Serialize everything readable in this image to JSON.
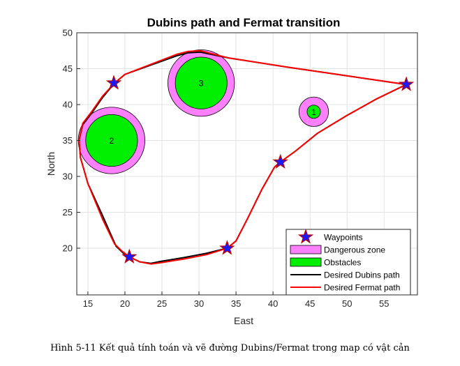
{
  "caption": "Hình 5-11 Kết quả tính toán và vẽ đường Dubins/Fermat trong map có vật cản",
  "chart_data": {
    "type": "line",
    "title": "Dubins path and Fermat transition",
    "xlabel": "East",
    "ylabel": "North",
    "xlim": [
      13.5,
      59.5
    ],
    "ylim": [
      13.5,
      50
    ],
    "xticks": [
      15,
      20,
      25,
      30,
      35,
      40,
      45,
      50,
      55
    ],
    "yticks": [
      20,
      25,
      30,
      35,
      40,
      45,
      50
    ],
    "grid": true,
    "legend_position": "bottom-right",
    "legend": [
      {
        "label": "Waypoints",
        "kind": "star",
        "color": "#1a1aff"
      },
      {
        "label": "Dangerous zone",
        "kind": "patch",
        "color": "#ff80ff"
      },
      {
        "label": "Obstacles",
        "kind": "patch",
        "color": "#00ee00"
      },
      {
        "label": "Desired Dubins path",
        "kind": "line",
        "color": "#000000"
      },
      {
        "label": "Desired Fermat path",
        "kind": "line",
        "color": "#ff0000"
      }
    ],
    "waypoints": [
      {
        "x": 58.0,
        "y": 42.8
      },
      {
        "x": 41.0,
        "y": 32.0
      },
      {
        "x": 33.8,
        "y": 20.0
      },
      {
        "x": 20.6,
        "y": 18.8
      },
      {
        "x": 18.5,
        "y": 43.0
      }
    ],
    "obstacles": [
      {
        "label": "1",
        "x": 45.5,
        "y": 39.0,
        "r": 0.9,
        "danger_r": 2.0
      },
      {
        "label": "2",
        "x": 18.2,
        "y": 35.0,
        "r": 3.5,
        "danger_r": 4.5
      },
      {
        "label": "3",
        "x": 30.3,
        "y": 43.0,
        "r": 3.5,
        "danger_r": 4.5
      }
    ],
    "series": [
      {
        "name": "Desired Dubins path",
        "color": "#000000",
        "x": [
          58.0,
          50.0,
          42.0,
          34.0,
          30.2,
          28.5,
          27.0,
          20.0,
          18.6,
          17.0,
          15.5,
          14.3,
          13.8,
          14.0,
          15.0,
          17.0,
          18.8,
          19.8,
          20.6,
          22.0,
          23.5,
          25.0,
          28.0,
          31.0,
          33.8,
          35.0,
          36.5,
          38.5,
          40.2,
          41.0,
          43.0,
          46.0,
          50.0,
          54.0,
          58.0
        ],
        "y": [
          42.8,
          44.0,
          45.2,
          46.5,
          47.3,
          47.2,
          46.8,
          44.2,
          43.0,
          41.0,
          38.8,
          37.2,
          35.0,
          32.6,
          29.0,
          24.5,
          20.3,
          19.3,
          18.8,
          18.1,
          17.9,
          18.2,
          18.7,
          19.3,
          20.0,
          21.0,
          24.0,
          28.2,
          31.3,
          32.0,
          33.5,
          36.0,
          38.5,
          40.8,
          42.8
        ]
      },
      {
        "name": "Desired Fermat path",
        "color": "#ff0000",
        "x": [
          58.0,
          50.0,
          42.0,
          34.0,
          30.2,
          28.5,
          27.0,
          20.0,
          18.6,
          17.0,
          15.5,
          14.3,
          13.8,
          14.0,
          15.0,
          17.0,
          18.6,
          19.6,
          20.6,
          22.0,
          23.5,
          25.0,
          28.0,
          31.0,
          33.8,
          35.0,
          36.5,
          38.5,
          40.2,
          41.0,
          43.0,
          46.0,
          50.0,
          54.0,
          58.0
        ],
        "y": [
          42.8,
          44.0,
          45.2,
          46.5,
          47.5,
          47.4,
          47.0,
          44.2,
          43.0,
          41.2,
          39.0,
          37.4,
          35.0,
          32.6,
          29.0,
          24.0,
          20.6,
          19.6,
          18.8,
          18.1,
          17.8,
          18.0,
          18.5,
          19.1,
          20.0,
          21.0,
          24.0,
          28.2,
          31.3,
          32.0,
          33.5,
          36.0,
          38.5,
          40.8,
          42.8
        ]
      }
    ]
  }
}
